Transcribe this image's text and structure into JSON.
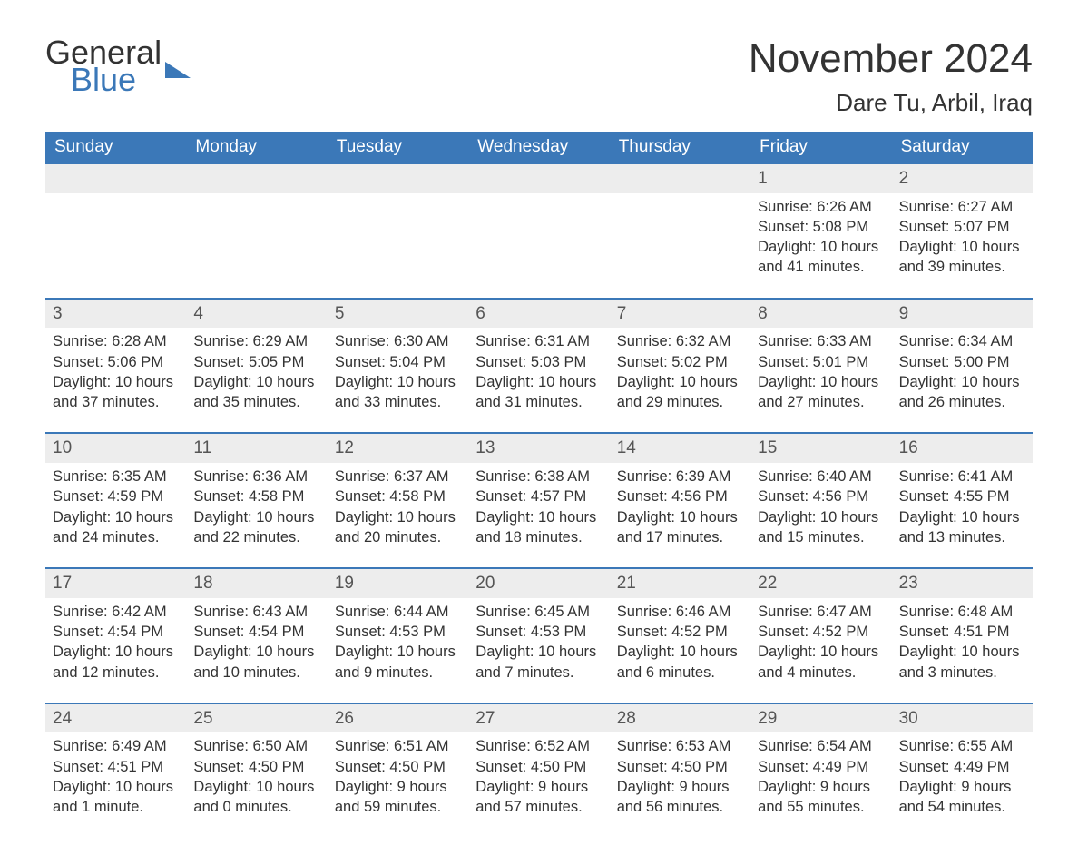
{
  "brand": {
    "part1": "General",
    "part2": "Blue",
    "color_primary": "#3b78b8",
    "color_text": "#333333"
  },
  "title": "November 2024",
  "location": "Dare Tu, Arbil, Iraq",
  "calendar": {
    "header_bg": "#3b78b8",
    "header_fg": "#ffffff",
    "row_separator_color": "#3b78b8",
    "daynum_bg": "#ededed",
    "body_bg": "#ffffff",
    "font_family": "Arial",
    "title_fontsize": 44,
    "location_fontsize": 26,
    "header_fontsize": 19,
    "body_fontsize": 16.5,
    "days_of_week": [
      "Sunday",
      "Monday",
      "Tuesday",
      "Wednesday",
      "Thursday",
      "Friday",
      "Saturday"
    ],
    "weeks": [
      [
        null,
        null,
        null,
        null,
        null,
        {
          "n": "1",
          "sunrise": "Sunrise: 6:26 AM",
          "sunset": "Sunset: 5:08 PM",
          "daylight": "Daylight: 10 hours and 41 minutes."
        },
        {
          "n": "2",
          "sunrise": "Sunrise: 6:27 AM",
          "sunset": "Sunset: 5:07 PM",
          "daylight": "Daylight: 10 hours and 39 minutes."
        }
      ],
      [
        {
          "n": "3",
          "sunrise": "Sunrise: 6:28 AM",
          "sunset": "Sunset: 5:06 PM",
          "daylight": "Daylight: 10 hours and 37 minutes."
        },
        {
          "n": "4",
          "sunrise": "Sunrise: 6:29 AM",
          "sunset": "Sunset: 5:05 PM",
          "daylight": "Daylight: 10 hours and 35 minutes."
        },
        {
          "n": "5",
          "sunrise": "Sunrise: 6:30 AM",
          "sunset": "Sunset: 5:04 PM",
          "daylight": "Daylight: 10 hours and 33 minutes."
        },
        {
          "n": "6",
          "sunrise": "Sunrise: 6:31 AM",
          "sunset": "Sunset: 5:03 PM",
          "daylight": "Daylight: 10 hours and 31 minutes."
        },
        {
          "n": "7",
          "sunrise": "Sunrise: 6:32 AM",
          "sunset": "Sunset: 5:02 PM",
          "daylight": "Daylight: 10 hours and 29 minutes."
        },
        {
          "n": "8",
          "sunrise": "Sunrise: 6:33 AM",
          "sunset": "Sunset: 5:01 PM",
          "daylight": "Daylight: 10 hours and 27 minutes."
        },
        {
          "n": "9",
          "sunrise": "Sunrise: 6:34 AM",
          "sunset": "Sunset: 5:00 PM",
          "daylight": "Daylight: 10 hours and 26 minutes."
        }
      ],
      [
        {
          "n": "10",
          "sunrise": "Sunrise: 6:35 AM",
          "sunset": "Sunset: 4:59 PM",
          "daylight": "Daylight: 10 hours and 24 minutes."
        },
        {
          "n": "11",
          "sunrise": "Sunrise: 6:36 AM",
          "sunset": "Sunset: 4:58 PM",
          "daylight": "Daylight: 10 hours and 22 minutes."
        },
        {
          "n": "12",
          "sunrise": "Sunrise: 6:37 AM",
          "sunset": "Sunset: 4:58 PM",
          "daylight": "Daylight: 10 hours and 20 minutes."
        },
        {
          "n": "13",
          "sunrise": "Sunrise: 6:38 AM",
          "sunset": "Sunset: 4:57 PM",
          "daylight": "Daylight: 10 hours and 18 minutes."
        },
        {
          "n": "14",
          "sunrise": "Sunrise: 6:39 AM",
          "sunset": "Sunset: 4:56 PM",
          "daylight": "Daylight: 10 hours and 17 minutes."
        },
        {
          "n": "15",
          "sunrise": "Sunrise: 6:40 AM",
          "sunset": "Sunset: 4:56 PM",
          "daylight": "Daylight: 10 hours and 15 minutes."
        },
        {
          "n": "16",
          "sunrise": "Sunrise: 6:41 AM",
          "sunset": "Sunset: 4:55 PM",
          "daylight": "Daylight: 10 hours and 13 minutes."
        }
      ],
      [
        {
          "n": "17",
          "sunrise": "Sunrise: 6:42 AM",
          "sunset": "Sunset: 4:54 PM",
          "daylight": "Daylight: 10 hours and 12 minutes."
        },
        {
          "n": "18",
          "sunrise": "Sunrise: 6:43 AM",
          "sunset": "Sunset: 4:54 PM",
          "daylight": "Daylight: 10 hours and 10 minutes."
        },
        {
          "n": "19",
          "sunrise": "Sunrise: 6:44 AM",
          "sunset": "Sunset: 4:53 PM",
          "daylight": "Daylight: 10 hours and 9 minutes."
        },
        {
          "n": "20",
          "sunrise": "Sunrise: 6:45 AM",
          "sunset": "Sunset: 4:53 PM",
          "daylight": "Daylight: 10 hours and 7 minutes."
        },
        {
          "n": "21",
          "sunrise": "Sunrise: 6:46 AM",
          "sunset": "Sunset: 4:52 PM",
          "daylight": "Daylight: 10 hours and 6 minutes."
        },
        {
          "n": "22",
          "sunrise": "Sunrise: 6:47 AM",
          "sunset": "Sunset: 4:52 PM",
          "daylight": "Daylight: 10 hours and 4 minutes."
        },
        {
          "n": "23",
          "sunrise": "Sunrise: 6:48 AM",
          "sunset": "Sunset: 4:51 PM",
          "daylight": "Daylight: 10 hours and 3 minutes."
        }
      ],
      [
        {
          "n": "24",
          "sunrise": "Sunrise: 6:49 AM",
          "sunset": "Sunset: 4:51 PM",
          "daylight": "Daylight: 10 hours and 1 minute."
        },
        {
          "n": "25",
          "sunrise": "Sunrise: 6:50 AM",
          "sunset": "Sunset: 4:50 PM",
          "daylight": "Daylight: 10 hours and 0 minutes."
        },
        {
          "n": "26",
          "sunrise": "Sunrise: 6:51 AM",
          "sunset": "Sunset: 4:50 PM",
          "daylight": "Daylight: 9 hours and 59 minutes."
        },
        {
          "n": "27",
          "sunrise": "Sunrise: 6:52 AM",
          "sunset": "Sunset: 4:50 PM",
          "daylight": "Daylight: 9 hours and 57 minutes."
        },
        {
          "n": "28",
          "sunrise": "Sunrise: 6:53 AM",
          "sunset": "Sunset: 4:50 PM",
          "daylight": "Daylight: 9 hours and 56 minutes."
        },
        {
          "n": "29",
          "sunrise": "Sunrise: 6:54 AM",
          "sunset": "Sunset: 4:49 PM",
          "daylight": "Daylight: 9 hours and 55 minutes."
        },
        {
          "n": "30",
          "sunrise": "Sunrise: 6:55 AM",
          "sunset": "Sunset: 4:49 PM",
          "daylight": "Daylight: 9 hours and 54 minutes."
        }
      ]
    ]
  }
}
